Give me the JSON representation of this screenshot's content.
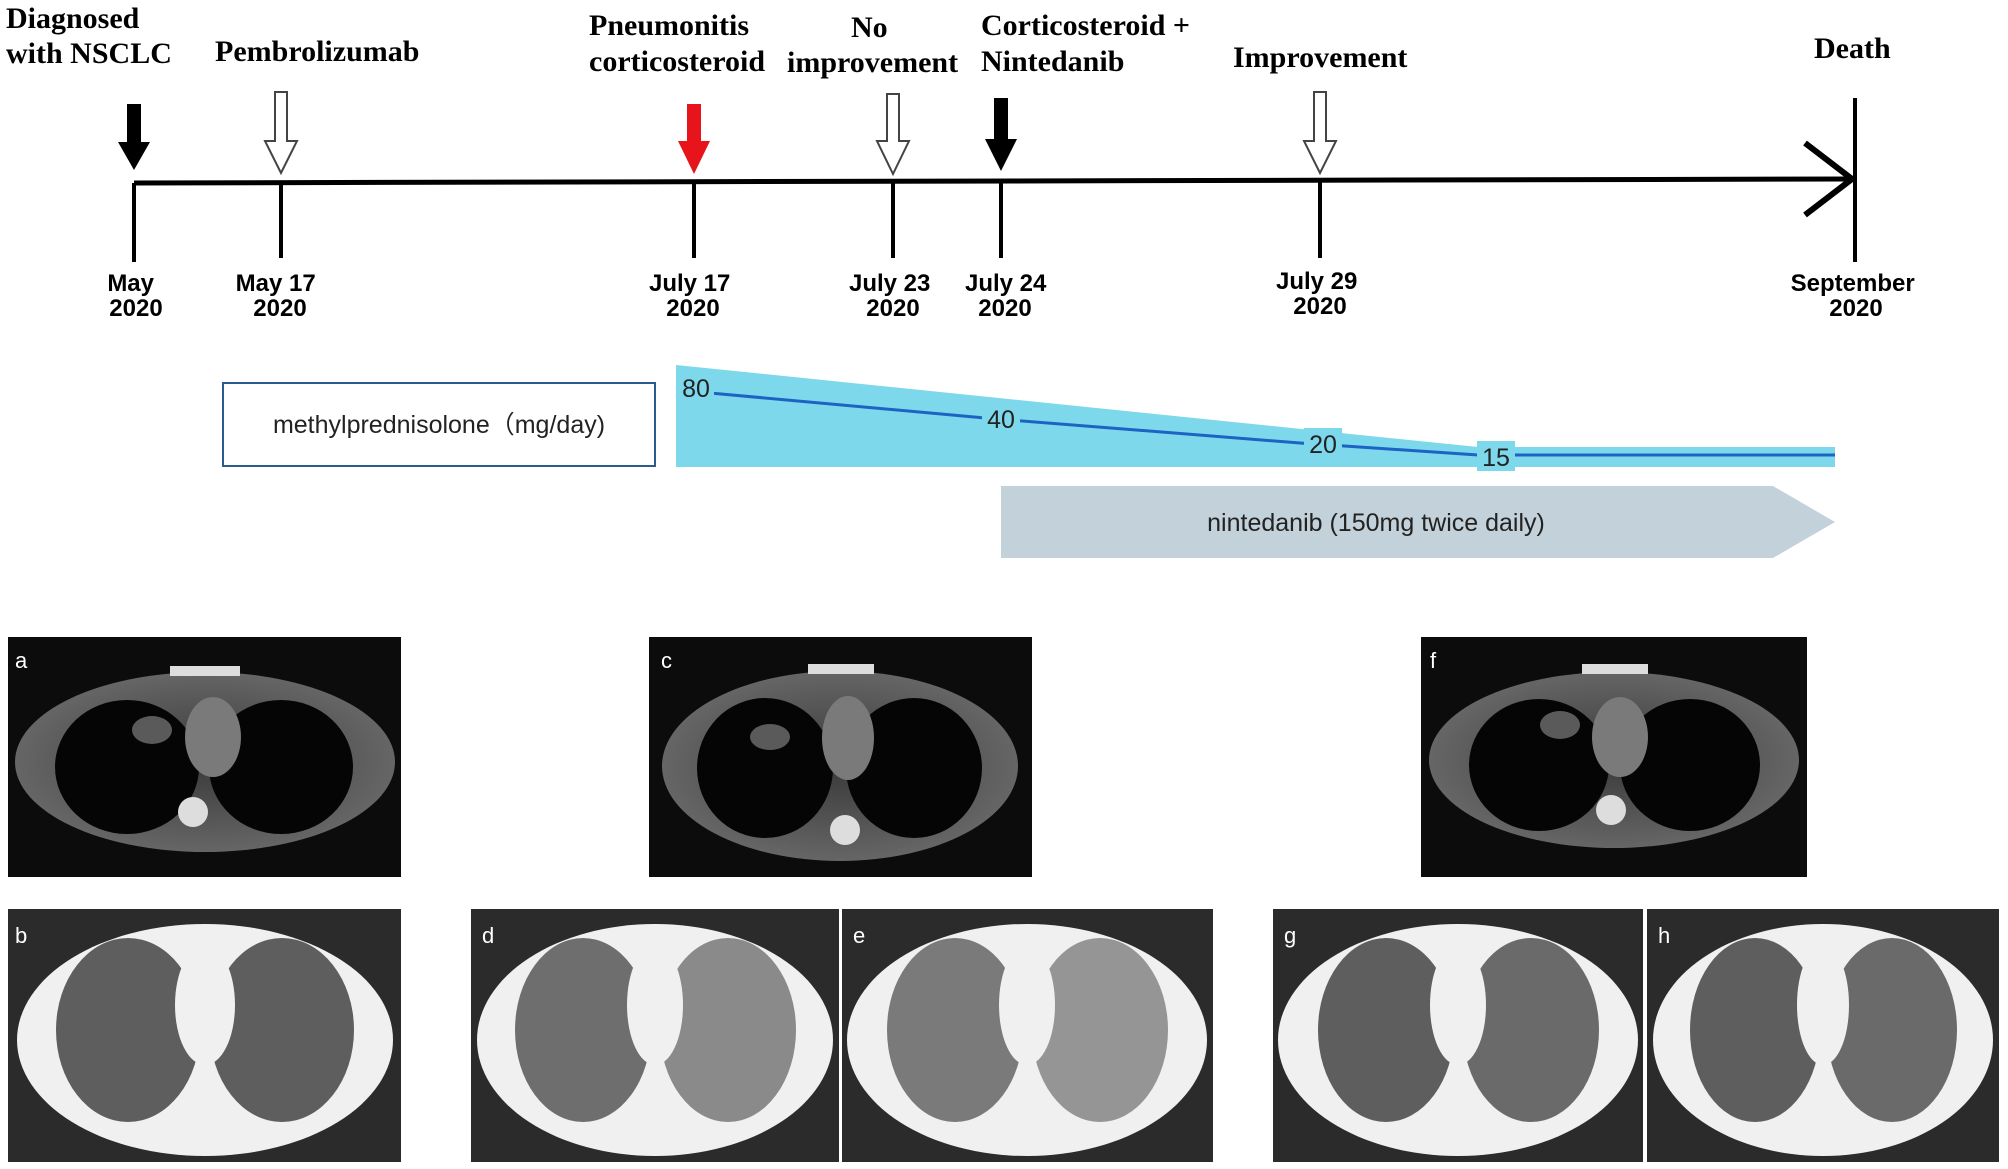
{
  "timeline": {
    "events": [
      {
        "id": "diagnosed",
        "label_lines": [
          "Diagnosed",
          "with NSCLC"
        ],
        "date_lines": [
          "May",
          "2020"
        ],
        "arrow": "black"
      },
      {
        "id": "pembrolizumab",
        "label_lines": [
          "Pembrolizumab"
        ],
        "date_lines": [
          "May 17",
          "2020"
        ],
        "arrow": "hollow"
      },
      {
        "id": "pneumonitis",
        "label_lines": [
          "Pneumonitis",
          "corticosteroid"
        ],
        "date_lines": [
          "July 17",
          "2020"
        ],
        "arrow": "red"
      },
      {
        "id": "no-improvement",
        "label_lines": [
          "No",
          "improvement"
        ],
        "date_lines": [
          "July 23",
          "2020"
        ],
        "arrow": "hollow"
      },
      {
        "id": "corticosteroid-nintedanib",
        "label_lines": [
          "Corticosteroid +",
          "Nintedanib"
        ],
        "date_lines": [
          "July 24",
          "2020"
        ],
        "arrow": "black"
      },
      {
        "id": "improvement",
        "label_lines": [
          "Improvement"
        ],
        "date_lines": [
          "July 29",
          "2020"
        ],
        "arrow": "hollow"
      },
      {
        "id": "death",
        "label_lines": [
          "Death"
        ],
        "date_lines": [
          "September",
          "2020"
        ],
        "arrow": "none"
      }
    ]
  },
  "treatment": {
    "methylprednisolone_label": "methylprednisolone（mg/day)",
    "doses": [
      "80",
      "40",
      "20",
      "15"
    ],
    "nintedanib_label": "nintedanib (150mg twice daily)"
  },
  "panels": [
    "a",
    "b",
    "c",
    "d",
    "e",
    "f",
    "g",
    "h"
  ],
  "colors": {
    "arrow_red": "#e8141b",
    "steroid_fill": "#7dd8ec",
    "steroid_line": "#1c63c4",
    "nintedanib_fill": "#c3d2da",
    "box_border": "#2c5a8c",
    "ct_background": "#0c0c0c",
    "lung_window_background": "#2b2b2b"
  }
}
